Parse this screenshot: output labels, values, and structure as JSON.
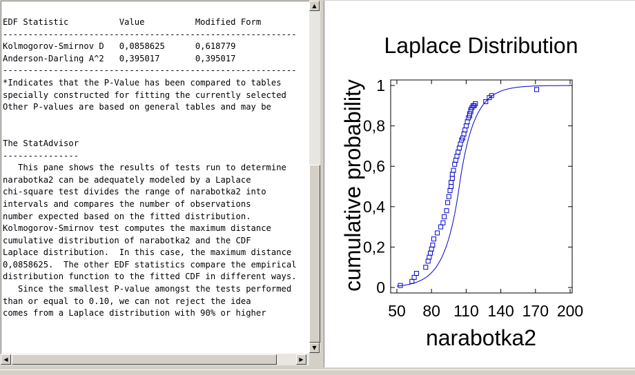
{
  "left_pane": {
    "lines": [
      "EDF Statistic          Value          Modified Form",
      "----------------------------------------------------------",
      "Kolmogorov-Smirnov D   0,0858625      0,618779",
      "Anderson-Darling A^2   0,395017       0,395017",
      "----------------------------------------------------------",
      "*Indicates that the P-Value has been compared to tables",
      "specially constructed for fitting the currently selected",
      "Other P-values are based on general tables and may be",
      "",
      "",
      "The StatAdvisor",
      "---------------",
      "   This pane shows the results of tests run to determine",
      "narabotka2 can be adequately modeled by a Laplace",
      "chi-square test divides the range of narabotka2 into",
      "intervals and compares the number of observations",
      "number expected based on the fitted distribution.",
      "Kolmogorov-Smirnov test computes the maximum distance",
      "cumulative distribution of narabotka2 and the CDF",
      "Laplace distribution.  In this case, the maximum distance",
      "0,0858625.  The other EDF statistics compare the empirical",
      "distribution function to the fitted CDF in different ways.",
      "   Since the smallest P-value amongst the tests performed",
      "than or equal to 0.10, we can not reject the idea",
      "comes from a Laplace distribution with 90% or higher"
    ]
  },
  "chart_data": {
    "type": "line",
    "title": "Laplace Distribution",
    "xlabel": "narabotka2",
    "ylabel": "cumulative probability",
    "xlim": [
      50,
      200
    ],
    "ylim": [
      0,
      1
    ],
    "x_ticks": [
      "50",
      "80",
      "110",
      "140",
      "170",
      "200"
    ],
    "x_tick_values": [
      50,
      80,
      110,
      140,
      170,
      200
    ],
    "y_ticks": [
      "0",
      "0,2",
      "0,4",
      "0,6",
      "0,8",
      "1"
    ],
    "y_tick_values": [
      0,
      0.2,
      0.4,
      0.6,
      0.8,
      1
    ],
    "grid": false,
    "series": [
      {
        "kind": "empirical-points",
        "marker": "square",
        "color": "#0000cc",
        "x": [
          53,
          63,
          65,
          67,
          75,
          77,
          78,
          79,
          80,
          81,
          82,
          85,
          88,
          90,
          91,
          93,
          94,
          95,
          96,
          97,
          97,
          98,
          98,
          99,
          100,
          101,
          102,
          103,
          104,
          105,
          106,
          107,
          108,
          109,
          110,
          111,
          112,
          113,
          113,
          114,
          114,
          115,
          116,
          117,
          118,
          127,
          130,
          132,
          171
        ],
        "y": [
          0.01,
          0.03,
          0.05,
          0.07,
          0.1,
          0.13,
          0.15,
          0.17,
          0.19,
          0.21,
          0.24,
          0.27,
          0.3,
          0.32,
          0.35,
          0.38,
          0.42,
          0.45,
          0.48,
          0.5,
          0.52,
          0.54,
          0.56,
          0.58,
          0.61,
          0.63,
          0.65,
          0.67,
          0.69,
          0.71,
          0.73,
          0.74,
          0.76,
          0.78,
          0.8,
          0.82,
          0.84,
          0.85,
          0.86,
          0.87,
          0.88,
          0.89,
          0.9,
          0.9,
          0.91,
          0.92,
          0.94,
          0.95,
          0.98
        ]
      },
      {
        "kind": "fitted-cdf",
        "color": "#0000cc",
        "location": 104,
        "scale": 12.5
      }
    ]
  },
  "colors": {
    "series": "#0000cc",
    "text": "#000000"
  }
}
